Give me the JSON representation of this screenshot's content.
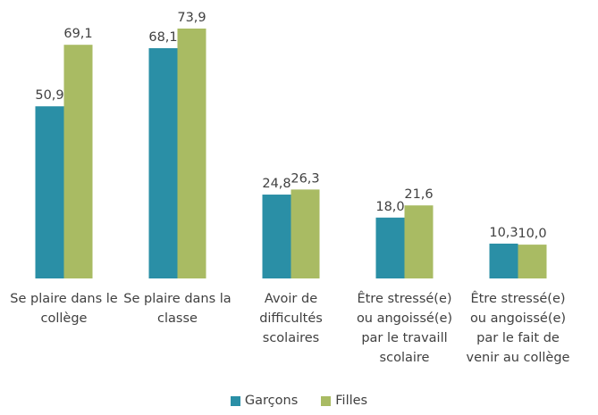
{
  "chart_data": {
    "type": "bar",
    "categories": [
      "Se plaire dans le collège",
      "Se plaire dans la classe",
      "Avoir de difficultés scolaires",
      "Être stressé(e) ou angoissé(e) par le travaill scolaire",
      "Être stressé(e) ou angoissé(e) par le fait de venir au collège"
    ],
    "series": [
      {
        "name": "Garçons",
        "color": "#2a8fa6",
        "values": [
          50.9,
          68.1,
          24.8,
          18.0,
          10.3
        ],
        "value_labels": [
          "50,9",
          "68,1",
          "24,8",
          "18,0",
          "10,3"
        ]
      },
      {
        "name": "Filles",
        "color": "#a9bb63",
        "values": [
          69.1,
          73.9,
          26.3,
          21.6,
          10.0
        ],
        "value_labels": [
          "69,1",
          "73,9",
          "26,3",
          "21,6",
          "10,0"
        ]
      }
    ],
    "legend": "bottom"
  }
}
